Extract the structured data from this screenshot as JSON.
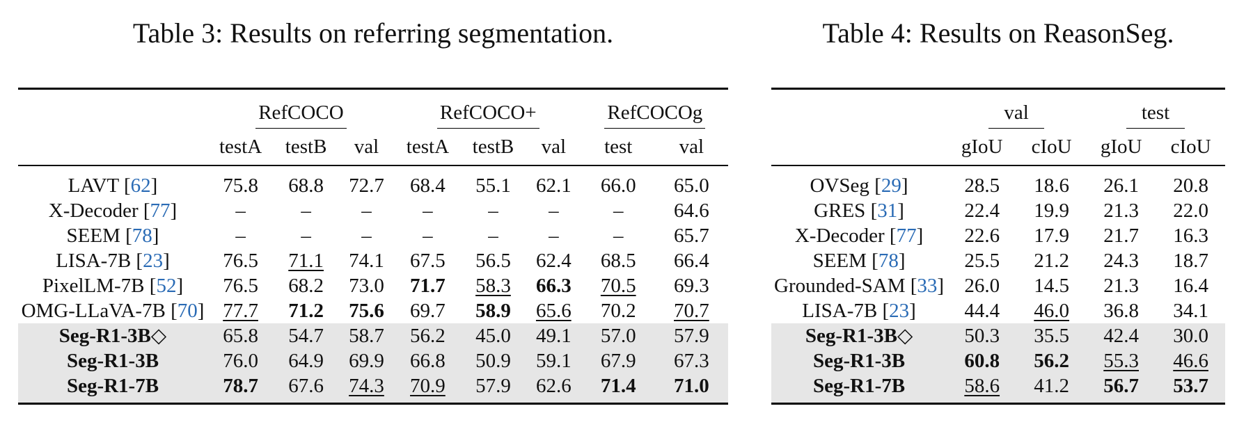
{
  "table3": {
    "caption": "Table 3: Results on referring segmentation.",
    "groups": [
      "RefCOCO",
      "RefCOCO+",
      "RefCOCOg"
    ],
    "subheaders": [
      "testA",
      "testB",
      "val",
      "testA",
      "testB",
      "val",
      "test",
      "val"
    ],
    "rows": [
      {
        "method": "LAVT [62]",
        "name": "LAVT",
        "cite": "62",
        "ours": false,
        "cells": [
          {
            "v": "75.8"
          },
          {
            "v": "68.8"
          },
          {
            "v": "72.7"
          },
          {
            "v": "68.4"
          },
          {
            "v": "55.1"
          },
          {
            "v": "62.1"
          },
          {
            "v": "66.0"
          },
          {
            "v": "65.0"
          }
        ]
      },
      {
        "method": "X-Decoder [77]",
        "name": "X-Decoder",
        "cite": "77",
        "ours": false,
        "cells": [
          {
            "v": "–"
          },
          {
            "v": "–"
          },
          {
            "v": "–"
          },
          {
            "v": "–"
          },
          {
            "v": "–"
          },
          {
            "v": "–"
          },
          {
            "v": "–"
          },
          {
            "v": "64.6"
          }
        ]
      },
      {
        "method": "SEEM [78]",
        "name": "SEEM",
        "cite": "78",
        "ours": false,
        "cells": [
          {
            "v": "–"
          },
          {
            "v": "–"
          },
          {
            "v": "–"
          },
          {
            "v": "–"
          },
          {
            "v": "–"
          },
          {
            "v": "–"
          },
          {
            "v": "–"
          },
          {
            "v": "65.7"
          }
        ]
      },
      {
        "method": "LISA-7B [23]",
        "name": "LISA-7B",
        "cite": "23",
        "ours": false,
        "cells": [
          {
            "v": "76.5"
          },
          {
            "v": "71.1",
            "u": true
          },
          {
            "v": "74.1"
          },
          {
            "v": "67.5"
          },
          {
            "v": "56.5"
          },
          {
            "v": "62.4"
          },
          {
            "v": "68.5"
          },
          {
            "v": "66.4"
          }
        ]
      },
      {
        "method": "PixelLM-7B [52]",
        "name": "PixelLM-7B",
        "cite": "52",
        "ours": false,
        "cells": [
          {
            "v": "76.5"
          },
          {
            "v": "68.2"
          },
          {
            "v": "73.0"
          },
          {
            "v": "71.7",
            "b": true
          },
          {
            "v": "58.3",
            "u": true
          },
          {
            "v": "66.3",
            "b": true
          },
          {
            "v": "70.5",
            "u": true
          },
          {
            "v": "69.3"
          }
        ]
      },
      {
        "method": "OMG-LLaVA-7B [70]",
        "name": "OMG-LLaVA-7B",
        "cite": "70",
        "ours": false,
        "cells": [
          {
            "v": "77.7",
            "u": true
          },
          {
            "v": "71.2",
            "b": true
          },
          {
            "v": "75.6",
            "b": true
          },
          {
            "v": "69.7"
          },
          {
            "v": "58.9",
            "b": true
          },
          {
            "v": "65.6",
            "u": true
          },
          {
            "v": "70.2"
          },
          {
            "v": "70.7",
            "u": true
          }
        ]
      },
      {
        "method": "Seg-R1-3B◇",
        "name": "Seg-R1-3B◇",
        "cite": "",
        "ours": true,
        "cells": [
          {
            "v": "65.8"
          },
          {
            "v": "54.7"
          },
          {
            "v": "58.7"
          },
          {
            "v": "56.2"
          },
          {
            "v": "45.0"
          },
          {
            "v": "49.1"
          },
          {
            "v": "57.0"
          },
          {
            "v": "57.9"
          }
        ]
      },
      {
        "method": "Seg-R1-3B",
        "name": "Seg-R1-3B",
        "cite": "",
        "ours": true,
        "cells": [
          {
            "v": "76.0"
          },
          {
            "v": "64.9"
          },
          {
            "v": "69.9"
          },
          {
            "v": "66.8"
          },
          {
            "v": "50.9"
          },
          {
            "v": "59.1"
          },
          {
            "v": "67.9"
          },
          {
            "v": "67.3"
          }
        ]
      },
      {
        "method": "Seg-R1-7B",
        "name": "Seg-R1-7B",
        "cite": "",
        "ours": true,
        "cells": [
          {
            "v": "78.7",
            "b": true
          },
          {
            "v": "67.6"
          },
          {
            "v": "74.3",
            "u": true
          },
          {
            "v": "70.9",
            "u": true
          },
          {
            "v": "57.9"
          },
          {
            "v": "62.6"
          },
          {
            "v": "71.4",
            "b": true
          },
          {
            "v": "71.0",
            "b": true
          }
        ]
      }
    ]
  },
  "table4": {
    "caption": "Table 4: Results on ReasonSeg.",
    "groups": [
      "val",
      "test"
    ],
    "subheaders": [
      "gIoU",
      "cIoU",
      "gIoU",
      "cIoU"
    ],
    "rows": [
      {
        "method": "OVSeg [29]",
        "name": "OVSeg",
        "cite": "29",
        "ours": false,
        "cells": [
          {
            "v": "28.5"
          },
          {
            "v": "18.6"
          },
          {
            "v": "26.1"
          },
          {
            "v": "20.8"
          }
        ]
      },
      {
        "method": "GRES [31]",
        "name": "GRES",
        "cite": "31",
        "ours": false,
        "cells": [
          {
            "v": "22.4"
          },
          {
            "v": "19.9"
          },
          {
            "v": "21.3"
          },
          {
            "v": "22.0"
          }
        ]
      },
      {
        "method": "X-Decoder [77]",
        "name": "X-Decoder",
        "cite": "77",
        "ours": false,
        "cells": [
          {
            "v": "22.6"
          },
          {
            "v": "17.9"
          },
          {
            "v": "21.7"
          },
          {
            "v": "16.3"
          }
        ]
      },
      {
        "method": "SEEM [78]",
        "name": "SEEM",
        "cite": "78",
        "ours": false,
        "cells": [
          {
            "v": "25.5"
          },
          {
            "v": "21.2"
          },
          {
            "v": "24.3"
          },
          {
            "v": "18.7"
          }
        ]
      },
      {
        "method": "Grounded-SAM [33]",
        "name": "Grounded-SAM",
        "cite": "33",
        "ours": false,
        "cells": [
          {
            "v": "26.0"
          },
          {
            "v": "14.5"
          },
          {
            "v": "21.3"
          },
          {
            "v": "16.4"
          }
        ]
      },
      {
        "method": "LISA-7B [23]",
        "name": "LISA-7B",
        "cite": "23",
        "ours": false,
        "cells": [
          {
            "v": "44.4"
          },
          {
            "v": "46.0",
            "u": true
          },
          {
            "v": "36.8"
          },
          {
            "v": "34.1"
          }
        ]
      },
      {
        "method": "Seg-R1-3B◇",
        "name": "Seg-R1-3B◇",
        "cite": "",
        "ours": true,
        "cells": [
          {
            "v": "50.3"
          },
          {
            "v": "35.5"
          },
          {
            "v": "42.4"
          },
          {
            "v": "30.0"
          }
        ]
      },
      {
        "method": "Seg-R1-3B",
        "name": "Seg-R1-3B",
        "cite": "",
        "ours": true,
        "cells": [
          {
            "v": "60.8",
            "b": true
          },
          {
            "v": "56.2",
            "b": true
          },
          {
            "v": "55.3",
            "u": true
          },
          {
            "v": "46.6",
            "u": true
          }
        ]
      },
      {
        "method": "Seg-R1-7B",
        "name": "Seg-R1-7B",
        "cite": "",
        "ours": true,
        "cells": [
          {
            "v": "58.6",
            "u": true
          },
          {
            "v": "41.2"
          },
          {
            "v": "56.7",
            "b": true
          },
          {
            "v": "53.7",
            "b": true
          }
        ]
      }
    ]
  },
  "colors": {
    "citation": "#2a6bb5",
    "highlight_row_bg": "#e6e6e6",
    "rule": "#000000"
  }
}
